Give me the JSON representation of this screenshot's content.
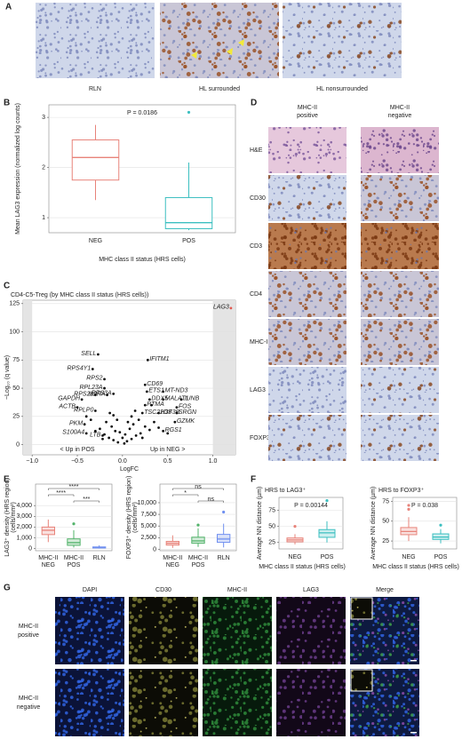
{
  "panel_labels": [
    "A",
    "B",
    "C",
    "D",
    "E",
    "F",
    "G"
  ],
  "panel_a": {
    "captions": [
      "RLN",
      "HL surrounded",
      "HL nonsurrounded"
    ]
  },
  "chart_data": [
    {
      "type": "box",
      "annotation": "P = 0.0186",
      "x_label": "MHC class II status (HRS cells)",
      "y_label": [
        "Mean LAG3 expression (normalized log counts)"
      ],
      "categories": [
        "NEG",
        "POS"
      ],
      "colors": [
        "#e8837a",
        "#3cbfc0"
      ],
      "filled": false,
      "boxes": [
        {
          "min": 1.35,
          "q1": 1.75,
          "median": 2.2,
          "q3": 2.55,
          "max": 2.85,
          "outliers": []
        },
        {
          "min": 0.75,
          "q1": 0.78,
          "median": 0.9,
          "q3": 1.4,
          "max": 2.1,
          "outliers": [
            3.1
          ]
        }
      ],
      "ylim": [
        0.7,
        3.25
      ],
      "yticks": [
        1,
        2,
        3
      ],
      "grid": true
    },
    {
      "type": "scatter",
      "title": "CD4-C5-Treg (by MHC class II status (HRS cells))",
      "x_label": "LogFC",
      "y_label": [
        "−Log₁₀ (q value)"
      ],
      "annotations": [
        "< Up in POS",
        "Up in NEG >"
      ],
      "color": "#111111",
      "highlight": {
        "label_index": 0,
        "color": "#e0574f"
      },
      "x": [
        1.2,
        -0.27,
        -0.33,
        -0.2,
        -0.2,
        0.28,
        -0.3,
        -0.17,
        -0.1,
        -0.45,
        0.25,
        0.27,
        0.45,
        0.3,
        0.45,
        0.65,
        0.25,
        0.6,
        0.22,
        0.4,
        0.6,
        0.58,
        0.45,
        -0.5,
        -0.3,
        -0.42,
        -0.4,
        -0.22,
        -0.05,
        0.02,
        0.05,
        -0.1,
        0.1,
        -0.15,
        0.15,
        -0.2,
        0.2,
        -0.08,
        0.08,
        -0.12,
        0.12,
        -0.18,
        0.18,
        -0.25,
        0.25,
        -0.3,
        0.3,
        0,
        0.03,
        -0.03,
        0.06,
        -0.06,
        0.1,
        -0.1,
        0.14,
        -0.14,
        0.22,
        -0.22,
        0.35,
        -0.35,
        0.4,
        -0.4,
        0.5,
        0.32
      ],
      "y": [
        121,
        80,
        67,
        58,
        50,
        75,
        44,
        44,
        45,
        40,
        53,
        47,
        47,
        40,
        40,
        40,
        35,
        33,
        28,
        28,
        28,
        20,
        12,
        33,
        30,
        18,
        10,
        8,
        2,
        1,
        3,
        4,
        5,
        6,
        8,
        9,
        10,
        12,
        14,
        16,
        18,
        20,
        22,
        14,
        16,
        12,
        13,
        6,
        9,
        11,
        20,
        22,
        25,
        26,
        30,
        28,
        6,
        5,
        20,
        22,
        15,
        25,
        10,
        35
      ],
      "labels": [
        "LAG3",
        "SELL",
        "RPS4Y1",
        "RPS2",
        "RPL23A",
        "IFITM1",
        "RPS24",
        "IL2RA",
        "RPS3A",
        "GAPDH",
        "CD69",
        "ETS1",
        "MT-ND3",
        "DDX5",
        "MALAT1",
        "JUNB",
        "PTMA",
        "FOS",
        "TSC22D3",
        "H3F3B",
        "SRGN",
        "GZMK",
        "RGS1",
        "ACTB",
        "RPLP0",
        "PKM",
        "S100A4",
        "LTB",
        null,
        null,
        null,
        null,
        null,
        null,
        null,
        null,
        null,
        null,
        null,
        null,
        null,
        null,
        null,
        null,
        null,
        null,
        null,
        null,
        null,
        null,
        null,
        null,
        null,
        null,
        null,
        null,
        null,
        null,
        null,
        null,
        null,
        null,
        null,
        null
      ],
      "xlim": [
        -1.1,
        1.25
      ],
      "xticks": [
        {
          "value": -1,
          "label": "−1.0"
        },
        {
          "value": -0.5,
          "label": "−0.5"
        },
        {
          "value": 0,
          "label": "0.0"
        },
        {
          "value": 0.5,
          "label": "0.5"
        },
        {
          "value": 1,
          "label": "1.0"
        }
      ],
      "ylim": [
        -9,
        128
      ],
      "yticks": [
        0,
        25,
        50,
        75,
        100,
        125
      ],
      "grid": true
    },
    {
      "type": "box",
      "y_label": [
        "LAG3⁺ density (HRS region)",
        "(cells/mm²)"
      ],
      "categories": [
        [
          "MHC-II",
          "NEG"
        ],
        [
          "MHC-II",
          "POS"
        ],
        [
          "RLN"
        ]
      ],
      "colors": [
        "#e8837a",
        "#52b36a",
        "#6f8ff0"
      ],
      "filled": true,
      "boxes": [
        {
          "min": 600,
          "q1": 1300,
          "median": 1700,
          "q3": 2000,
          "max": 2700,
          "outliers": []
        },
        {
          "min": 100,
          "q1": 300,
          "median": 550,
          "q3": 900,
          "max": 1700,
          "outliers": [
            2300
          ]
        },
        {
          "min": 0,
          "q1": 50,
          "median": 100,
          "q3": 150,
          "max": 300,
          "outliers": []
        }
      ],
      "significance": [
        {
          "label": "****",
          "from": 0,
          "to": 2
        },
        {
          "label": "****",
          "from": 0,
          "to": 1
        },
        {
          "label": "***",
          "from": 1,
          "to": 2
        }
      ],
      "ylim": [
        -200,
        6000
      ],
      "yticks": [
        0,
        {
          "value": 1000,
          "label": "1,000"
        },
        {
          "value": 2000,
          "label": "2,000"
        },
        {
          "value": 3000,
          "label": "3,000"
        },
        {
          "value": 4000,
          "label": "4,000"
        }
      ],
      "grid": true
    },
    {
      "type": "box",
      "y_label": [
        "FOXP3⁺ density (HRS region)",
        "(cells/mm²)"
      ],
      "categories": [
        [
          "MHC-II",
          "NEG"
        ],
        [
          "MHC-II",
          "POS"
        ],
        [
          "RLN"
        ]
      ],
      "colors": [
        "#e8837a",
        "#52b36a",
        "#6f8ff0"
      ],
      "filled": true,
      "boxes": [
        {
          "min": 300,
          "q1": 900,
          "median": 1300,
          "q3": 1700,
          "max": 3000,
          "outliers": []
        },
        {
          "min": 500,
          "q1": 1300,
          "median": 1800,
          "q3": 2600,
          "max": 4500,
          "outliers": [
            5200
          ]
        },
        {
          "min": 400,
          "q1": 1500,
          "median": 2200,
          "q3": 3200,
          "max": 5500,
          "outliers": [
            8000
          ]
        }
      ],
      "significance": [
        {
          "label": "ns",
          "from": 0,
          "to": 2
        },
        {
          "label": "*",
          "from": 0,
          "to": 1
        },
        {
          "label": "ns",
          "from": 1,
          "to": 2
        }
      ],
      "ylim": [
        -300,
        14000
      ],
      "yticks": [
        0,
        {
          "value": 2500,
          "label": "2,500"
        },
        {
          "value": 5000,
          "label": "5,000"
        },
        {
          "value": 7500,
          "label": "7,500"
        },
        {
          "value": 10000,
          "label": "10,000"
        }
      ],
      "grid": true
    },
    {
      "type": "box",
      "title": "HRS to LAG3⁺",
      "annotation": "P = 0.00144",
      "x_label": "MHC class II status (HRS cells)",
      "y_label": [
        "Average NN distance (µm)"
      ],
      "categories": [
        "NEG",
        "POS"
      ],
      "colors": [
        "#e8837a",
        "#3cbfc0"
      ],
      "filled": true,
      "boxes": [
        {
          "min": 22,
          "q1": 26,
          "median": 29,
          "q3": 32,
          "max": 38,
          "outliers": [
            50
          ]
        },
        {
          "min": 25,
          "q1": 33,
          "median": 40,
          "q3": 45,
          "max": 58,
          "outliers": [
            90
          ]
        }
      ],
      "ylim": [
        15,
        95
      ],
      "yticks": [
        25,
        50,
        75
      ],
      "grid": true
    },
    {
      "type": "box",
      "title": "HRS to FOXP3⁺",
      "annotation": "P = 0.038",
      "x_label": "MHC class II status (HRS cells)",
      "y_label": [
        "Average NN distance (µm)"
      ],
      "categories": [
        "NEG",
        "POS"
      ],
      "colors": [
        "#e8837a",
        "#3cbfc0"
      ],
      "filled": true,
      "boxes": [
        {
          "min": 25,
          "q1": 33,
          "median": 37,
          "q3": 42,
          "max": 55,
          "outliers": [
            65,
            70
          ]
        },
        {
          "min": 22,
          "q1": 27,
          "median": 30,
          "q3": 34,
          "max": 40,
          "outliers": [
            45
          ]
        }
      ],
      "ylim": [
        15,
        80
      ],
      "yticks": [
        25,
        50,
        75
      ],
      "grid": true
    }
  ],
  "panel_d": {
    "columns": [
      [
        "MHC-II",
        "positive"
      ],
      [
        "MHC-II",
        "negative"
      ]
    ],
    "rows": [
      "H&E",
      "CD30",
      "CD3",
      "CD4",
      "MHC-II",
      "LAG3",
      "FOXP3"
    ]
  },
  "panel_g": {
    "columns": [
      "DAPI",
      "CD30",
      "MHC-II",
      "LAG3",
      "Merge"
    ],
    "rows": [
      [
        "MHC-II",
        "positive"
      ],
      [
        "MHC-II",
        "negative"
      ]
    ]
  }
}
